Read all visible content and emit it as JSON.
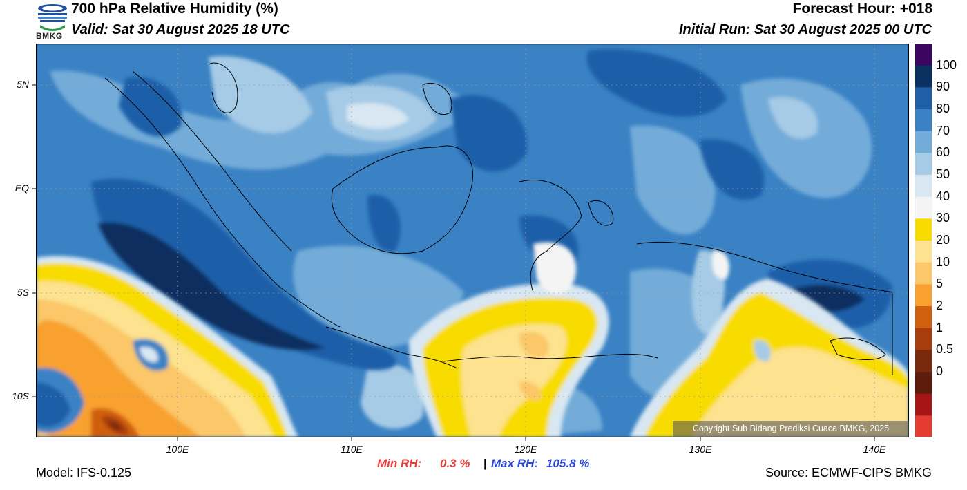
{
  "header": {
    "title": "700 hPa Relative Humidity (%)",
    "valid": "Valid: Sat 30 August 2025 18 UTC",
    "forecast_hour": "Forecast Hour: +018",
    "initial_run": "Initial Run: Sat 30 August 2025 00 UTC"
  },
  "logo": {
    "text": "BMKG",
    "icon": "bmkg-logo-icon"
  },
  "map": {
    "lat_labels": [
      "5N",
      "EQ",
      "5S",
      "10S"
    ],
    "lon_labels": [
      "100E",
      "110E",
      "120E",
      "130E",
      "140E"
    ],
    "copyright": "Copyright Sub Bidang Prediksi Cuaca BMKG, 2025"
  },
  "colorbar": {
    "labels": [
      "100",
      "90",
      "80",
      "70",
      "60",
      "50",
      "40",
      "30",
      "20",
      "10",
      "5",
      "2",
      "1",
      "0.5",
      "0"
    ],
    "colors": [
      "#3a0660",
      "#0b2f5e",
      "#1f5fa8",
      "#3a82c4",
      "#73acd9",
      "#a6cbe6",
      "#d8e7f2",
      "#f4f4f4",
      "#f8dc00",
      "#fde28f",
      "#fbc768",
      "#f8a12e",
      "#d05f0e",
      "#a73d0b",
      "#7a2a0c",
      "#5e1c0c",
      "#a81517",
      "#e53a30"
    ]
  },
  "stats": {
    "min_label": "Min RH:",
    "min_value": "0.3 %",
    "separator": "|",
    "max_label": "Max RH:",
    "max_value": "105.8 %",
    "min_color": "#e8413c",
    "max_color": "#2a47d8"
  },
  "footer": {
    "model": "Model: IFS-0.125",
    "source": "Source: ECMWF-CIPS BMKG"
  }
}
